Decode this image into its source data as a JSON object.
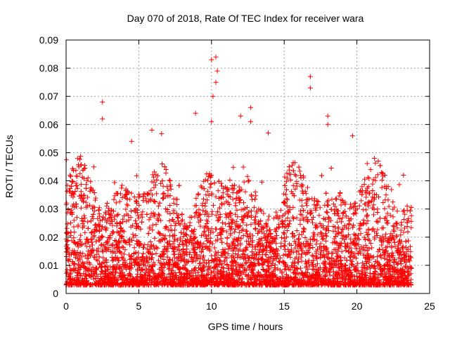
{
  "chart_data": {
    "type": "scatter",
    "title": "Day 070 of 2018, Rate Of TEC Index for receiver wara",
    "xlabel": "GPS time / hours",
    "ylabel": "ROTI / TECUs",
    "xlim": [
      0,
      25
    ],
    "ylim": [
      0,
      0.09
    ],
    "x_ticks": [
      0,
      5,
      10,
      15,
      20,
      25
    ],
    "x_tick_labels": [
      "0",
      "5",
      "10",
      "15",
      "20",
      "25"
    ],
    "y_ticks": [
      0,
      0.01,
      0.02,
      0.03,
      0.04,
      0.05,
      0.06,
      0.07,
      0.08,
      0.09
    ],
    "y_tick_labels": [
      "0",
      "0.01",
      "0.02",
      "0.03",
      "0.04",
      "0.05",
      "0.06",
      "0.07",
      "0.08",
      "0.09"
    ],
    "grid": true,
    "marker": "+",
    "series": [
      {
        "name": "ROTI",
        "color": "#ff0000",
        "x_range": [
          0,
          23.75
        ],
        "typical_range": [
          0.003,
          0.03
        ],
        "notable_points": [
          {
            "x": 2.5,
            "y": 0.068
          },
          {
            "x": 2.5,
            "y": 0.062
          },
          {
            "x": 4.5,
            "y": 0.054
          },
          {
            "x": 5.9,
            "y": 0.058
          },
          {
            "x": 8.9,
            "y": 0.064
          },
          {
            "x": 10.0,
            "y": 0.083
          },
          {
            "x": 10.3,
            "y": 0.084
          },
          {
            "x": 10.4,
            "y": 0.079
          },
          {
            "x": 10.1,
            "y": 0.07
          },
          {
            "x": 10.0,
            "y": 0.061
          },
          {
            "x": 10.3,
            "y": 0.075
          },
          {
            "x": 12.0,
            "y": 0.063
          },
          {
            "x": 12.7,
            "y": 0.066
          },
          {
            "x": 12.7,
            "y": 0.061
          },
          {
            "x": 16.8,
            "y": 0.077
          },
          {
            "x": 16.8,
            "y": 0.073
          },
          {
            "x": 18.0,
            "y": 0.063
          },
          {
            "x": 18.0,
            "y": 0.06
          },
          {
            "x": 19.7,
            "y": 0.056
          },
          {
            "x": 21.2,
            "y": 0.048
          },
          {
            "x": 23.2,
            "y": 0.042
          },
          {
            "x": 13.9,
            "y": 0.057
          },
          {
            "x": 6.6,
            "y": 0.046
          }
        ]
      }
    ]
  }
}
